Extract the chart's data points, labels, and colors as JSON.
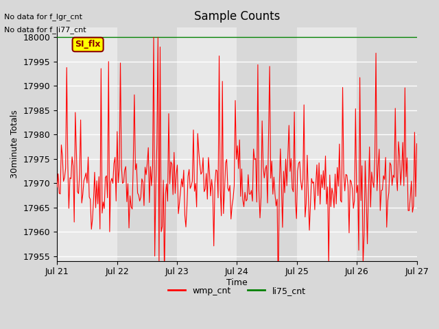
{
  "title": "Sample Counts",
  "ylabel": "30minute Totals",
  "xlabel": "Time",
  "yticks": [
    17955,
    17960,
    17965,
    17970,
    17975,
    17980,
    17985,
    17990,
    17995,
    18000
  ],
  "ylim": [
    17954,
    18002
  ],
  "xtick_labels": [
    "Jul 21",
    "Jul 22",
    "Jul 23",
    "Jul 24",
    "Jul 25",
    "Jul 26",
    "Jul 27"
  ],
  "annotations_top": [
    "No data for f_lgr_cnt",
    "No data for f_li77_cnt"
  ],
  "annotation_box": "SI_flx",
  "legend_entries": [
    "wmp_cnt",
    "li75_cnt"
  ],
  "legend_colors": [
    "red",
    "green"
  ],
  "bg_color": "#e8e8e8",
  "plot_bg_color": "#f0f0f0",
  "grid_color": "white",
  "wmp_color": "red",
  "li75_color": "green",
  "li75_value": 18000
}
